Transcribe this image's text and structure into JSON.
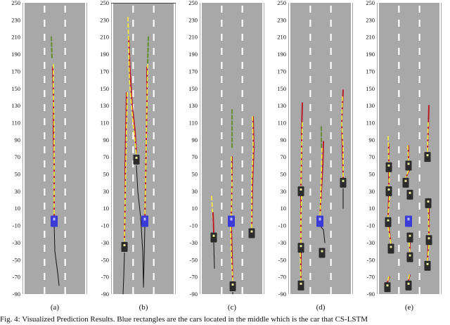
{
  "caption": "Fig. 4: Visualized Prediction Results. Blue rectangles are the cars located in the middle which is the car that CS-LSTM",
  "y_ticks": [
    "250",
    "230",
    "210",
    "190",
    "170",
    "150",
    "130",
    "110",
    "90",
    "70",
    "50",
    "30",
    "10",
    "-10",
    "-30",
    "-50",
    "-70",
    "-90"
  ],
  "panels": [
    {
      "label": "(a)"
    },
    {
      "label": "(b)"
    },
    {
      "label": "(c)"
    },
    {
      "label": "(d)"
    },
    {
      "label": "(e)"
    }
  ],
  "colors": {
    "road": "#a8a8a8",
    "lane_marking": "#ffffff",
    "ego_car": "#3a3ad6",
    "neighbor_car": "#2b2b2b",
    "history": "#6b8f3a",
    "ground_truth": "#f2e84a",
    "prediction": "#b81c2a",
    "actual_path": "#111111"
  }
}
